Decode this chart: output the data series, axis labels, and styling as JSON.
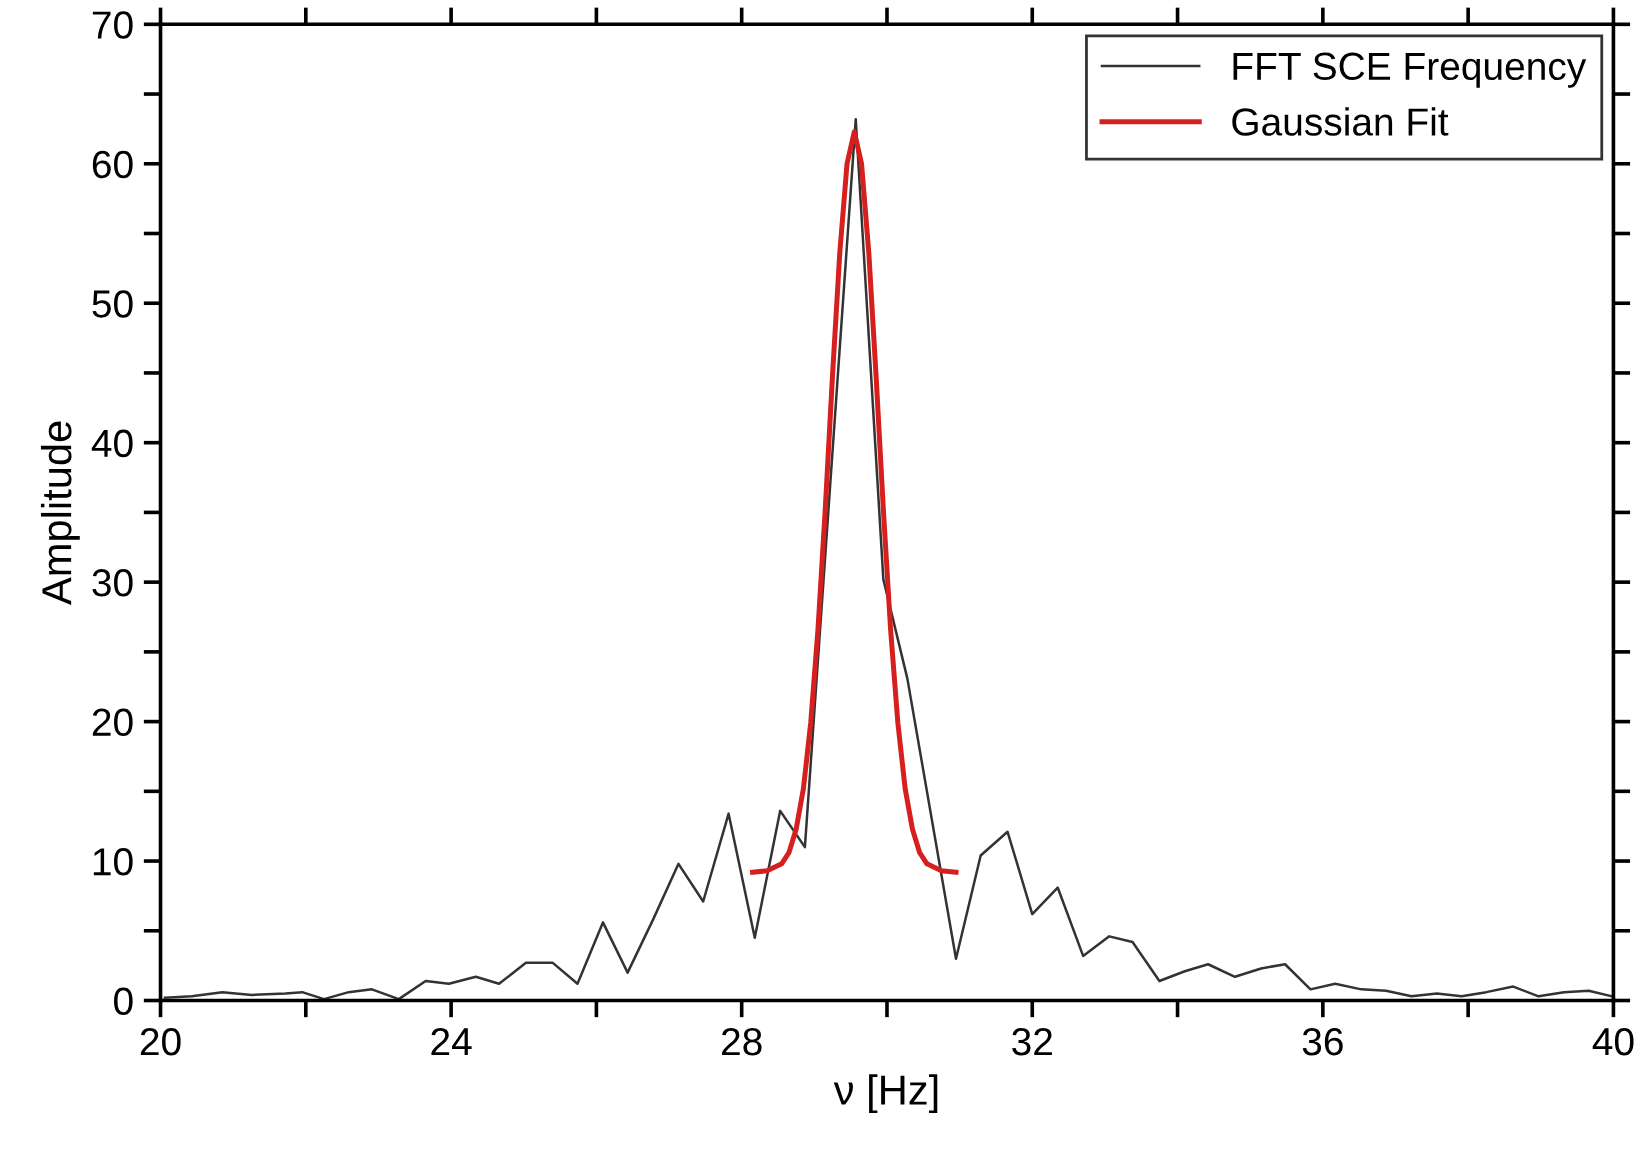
{
  "chart_data": {
    "type": "line",
    "xlabel": "ν [Hz]",
    "ylabel": "Amplitude",
    "series": [
      {
        "name": "FFT SCE Frequency",
        "color": "#333333",
        "x": [
          20.06,
          20.43,
          20.85,
          21.26,
          21.72,
          21.95,
          22.25,
          22.59,
          22.91,
          23.28,
          23.65,
          23.97,
          24.34,
          24.66,
          25.03,
          25.4,
          25.74,
          26.09,
          26.43,
          26.78,
          27.13,
          27.47,
          27.82,
          28.18,
          28.53,
          28.87,
          29.57,
          29.95,
          30.28,
          30.95,
          31.29,
          31.66,
          32.0,
          32.35,
          32.7,
          33.06,
          33.38,
          33.75,
          34.1,
          34.42,
          34.79,
          35.15,
          35.48,
          35.83,
          36.17,
          36.53,
          36.87,
          37.22,
          37.57,
          37.91,
          38.25,
          38.62,
          38.97,
          39.32,
          39.66,
          39.98
        ],
        "values": [
          0.2,
          0.3,
          0.6,
          0.4,
          0.5,
          0.6,
          0.1,
          0.6,
          0.8,
          0.1,
          1.4,
          1.2,
          1.7,
          1.2,
          2.7,
          2.7,
          1.2,
          5.6,
          2.0,
          5.8,
          9.8,
          7.1,
          13.4,
          4.5,
          13.6,
          11.0,
          63.2,
          30.2,
          23.1,
          3.0,
          10.4,
          12.1,
          6.2,
          8.1,
          3.2,
          4.6,
          4.2,
          1.4,
          2.1,
          2.6,
          1.7,
          2.3,
          2.6,
          0.8,
          1.2,
          0.8,
          0.7,
          0.3,
          0.5,
          0.3,
          0.6,
          1.0,
          0.3,
          0.6,
          0.7,
          0.3
        ]
      },
      {
        "name": "Gaussian Fit",
        "color": "#d62020",
        "x": [
          28.15,
          28.35,
          28.55,
          28.65,
          28.75,
          28.85,
          28.95,
          29.05,
          29.15,
          29.25,
          29.35,
          29.45,
          29.55,
          29.65,
          29.75,
          29.85,
          29.95,
          30.05,
          30.15,
          30.25,
          30.35,
          30.45,
          30.55,
          30.75,
          30.95
        ],
        "values": [
          9.2,
          9.3,
          9.8,
          10.6,
          12.3,
          15.2,
          19.9,
          26.6,
          35.2,
          44.8,
          53.6,
          60.0,
          62.3,
          60.0,
          53.6,
          44.8,
          35.2,
          26.6,
          19.9,
          15.2,
          12.3,
          10.6,
          9.8,
          9.3,
          9.2
        ]
      }
    ],
    "xlim": [
      20,
      40
    ],
    "xticks": [
      20,
      {
        "value": 22,
        "label": null
      },
      24,
      {
        "value": 26,
        "label": null
      },
      28,
      {
        "value": 30,
        "label": null
      },
      32,
      {
        "value": 34,
        "label": null
      },
      36,
      {
        "value": 38,
        "label": null
      },
      40
    ],
    "ylim": [
      0,
      70
    ],
    "yticks": [
      0,
      {
        "value": 5,
        "label": null
      },
      10,
      {
        "value": 15,
        "label": null
      },
      20,
      {
        "value": 25,
        "label": null
      },
      30,
      {
        "value": 35,
        "label": null
      },
      40,
      {
        "value": 45,
        "label": null
      },
      50,
      {
        "value": 55,
        "label": null
      },
      60,
      {
        "value": 65,
        "label": null
      },
      70
    ],
    "grid": false,
    "legend": "top right",
    "marker": "none",
    "line_style": "solid"
  }
}
